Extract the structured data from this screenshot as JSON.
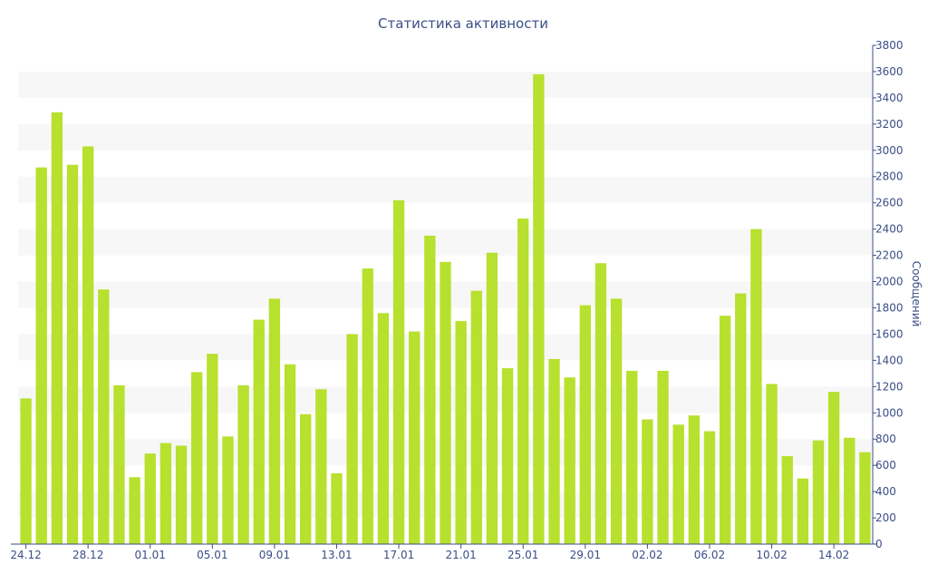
{
  "chart_data": {
    "type": "bar",
    "title": "Статистика активности",
    "xlabel": "",
    "ylabel": "Сообщений",
    "ylim": [
      0,
      3800
    ],
    "y_axis_position": "right",
    "grid": "alternating horizontal bands",
    "legend": "none",
    "bar_color": "#b8e02e",
    "band_color": "#f7f7f7",
    "text_color": "#3b4e87",
    "y_ticks": [
      0,
      200,
      400,
      600,
      800,
      1000,
      1200,
      1400,
      1600,
      1800,
      2000,
      2200,
      2400,
      2600,
      2800,
      3000,
      3200,
      3400,
      3600,
      3800
    ],
    "x_tick_labels": [
      {
        "index": 0,
        "label": "24.12"
      },
      {
        "index": 4,
        "label": "28.12"
      },
      {
        "index": 8,
        "label": "01.01"
      },
      {
        "index": 12,
        "label": "05.01"
      },
      {
        "index": 16,
        "label": "09.01"
      },
      {
        "index": 20,
        "label": "13.01"
      },
      {
        "index": 24,
        "label": "17.01"
      },
      {
        "index": 28,
        "label": "21.01"
      },
      {
        "index": 32,
        "label": "25.01"
      },
      {
        "index": 36,
        "label": "29.01"
      },
      {
        "index": 40,
        "label": "02.02"
      },
      {
        "index": 44,
        "label": "06.02"
      },
      {
        "index": 48,
        "label": "10.02"
      },
      {
        "index": 52,
        "label": "14.02"
      }
    ],
    "values": [
      1110,
      2870,
      3290,
      2890,
      3030,
      1940,
      1210,
      510,
      690,
      770,
      750,
      1310,
      1450,
      820,
      1210,
      1710,
      1870,
      1370,
      990,
      1180,
      540,
      1600,
      2100,
      1760,
      2620,
      1620,
      2350,
      2150,
      1700,
      1930,
      2220,
      1340,
      2480,
      3580,
      1410,
      1270,
      1820,
      2140,
      1870,
      1320,
      950,
      1320,
      910,
      980,
      860,
      1740,
      1910,
      2400,
      1220,
      670,
      500,
      790,
      1160,
      810,
      700
    ]
  }
}
